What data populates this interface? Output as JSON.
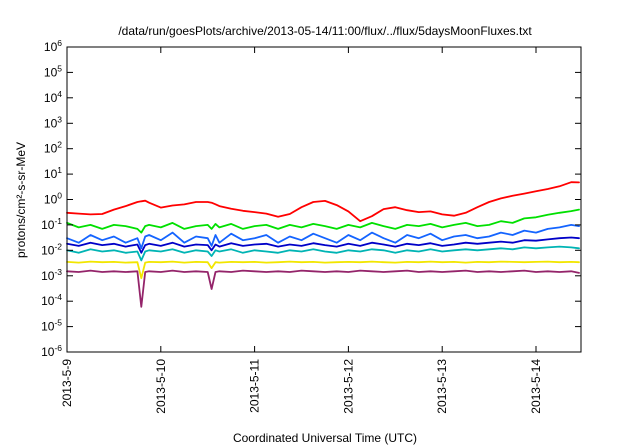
{
  "page": {
    "background": "#ffffff"
  },
  "chart_data": {
    "type": "line",
    "title": "/data/run/goesPlots/archive/2013-05-14/11:00/flux/../flux/5daysMoonFluxes.txt",
    "xlabel": "Coordinated Universal Time (UTC)",
    "ylabel": "protons/cm²-s-sr-MeV",
    "xscale": "time",
    "yscale": "log",
    "xlim": [
      "2013-05-09 00:00",
      "2013-05-14 11:30"
    ],
    "ylim": [
      1e-06,
      1000000.0
    ],
    "grid": false,
    "xticks": [
      {
        "value": "2013-05-09 00:00",
        "label": "2013-5-9"
      },
      {
        "value": "2013-05-10 00:00",
        "label": "2013-5-10"
      },
      {
        "value": "2013-05-11 00:00",
        "label": "2013-5-11"
      },
      {
        "value": "2013-05-12 00:00",
        "label": "2013-5-12"
      },
      {
        "value": "2013-05-13 00:00",
        "label": "2013-5-13"
      },
      {
        "value": "2013-05-14 00:00",
        "label": "2013-5-14"
      }
    ],
    "yticks": [
      {
        "value": 1000000.0,
        "base": "10",
        "exp": "6"
      },
      {
        "value": 100000.0,
        "base": "10",
        "exp": "5"
      },
      {
        "value": 10000.0,
        "base": "10",
        "exp": "4"
      },
      {
        "value": 1000.0,
        "base": "10",
        "exp": "3"
      },
      {
        "value": 100.0,
        "base": "10",
        "exp": "2"
      },
      {
        "value": 10.0,
        "base": "10",
        "exp": "1"
      },
      {
        "value": 1,
        "base": "10",
        "exp": "0"
      },
      {
        "value": 0.1,
        "base": "10",
        "exp": "-1"
      },
      {
        "value": 0.01,
        "base": "10",
        "exp": "-2"
      },
      {
        "value": 0.001,
        "base": "10",
        "exp": "-3"
      },
      {
        "value": 0.0001,
        "base": "10",
        "exp": "-4"
      },
      {
        "value": 1e-05,
        "base": "10",
        "exp": "-5"
      },
      {
        "value": 1e-06,
        "base": "10",
        "exp": "-6"
      }
    ],
    "x": [
      "2013-05-09 00:00",
      "2013-05-09 03:00",
      "2013-05-09 06:00",
      "2013-05-09 09:00",
      "2013-05-09 12:00",
      "2013-05-09 15:00",
      "2013-05-09 18:00",
      "2013-05-09 19:00",
      "2013-05-09 20:00",
      "2013-05-09 21:00",
      "2013-05-10 00:00",
      "2013-05-10 03:00",
      "2013-05-10 06:00",
      "2013-05-10 09:00",
      "2013-05-10 12:00",
      "2013-05-10 13:00",
      "2013-05-10 14:00",
      "2013-05-10 15:00",
      "2013-05-10 18:00",
      "2013-05-10 21:00",
      "2013-05-11 00:00",
      "2013-05-11 03:00",
      "2013-05-11 06:00",
      "2013-05-11 09:00",
      "2013-05-11 12:00",
      "2013-05-11 15:00",
      "2013-05-11 18:00",
      "2013-05-11 21:00",
      "2013-05-12 00:00",
      "2013-05-12 03:00",
      "2013-05-12 06:00",
      "2013-05-12 09:00",
      "2013-05-12 12:00",
      "2013-05-12 15:00",
      "2013-05-12 18:00",
      "2013-05-12 21:00",
      "2013-05-13 00:00",
      "2013-05-13 03:00",
      "2013-05-13 06:00",
      "2013-05-13 09:00",
      "2013-05-13 12:00",
      "2013-05-13 15:00",
      "2013-05-13 18:00",
      "2013-05-13 21:00",
      "2013-05-14 00:00",
      "2013-05-14 03:00",
      "2013-05-14 06:00",
      "2013-05-14 09:00",
      "2013-05-14 11:00"
    ],
    "series": [
      {
        "color": "#ff0000",
        "values": [
          0.3,
          0.28,
          0.26,
          0.27,
          0.4,
          0.55,
          0.8,
          0.85,
          0.9,
          0.75,
          0.48,
          0.58,
          0.64,
          0.8,
          0.8,
          0.75,
          0.65,
          0.55,
          0.43,
          0.36,
          0.32,
          0.28,
          0.21,
          0.27,
          0.5,
          0.8,
          0.88,
          0.6,
          0.34,
          0.14,
          0.22,
          0.42,
          0.5,
          0.38,
          0.32,
          0.34,
          0.26,
          0.23,
          0.3,
          0.5,
          0.8,
          1.1,
          1.4,
          1.7,
          2.1,
          2.6,
          3.3,
          4.8,
          4.7
        ]
      },
      {
        "color": "#00e000",
        "values": [
          0.12,
          0.08,
          0.1,
          0.07,
          0.1,
          0.09,
          0.07,
          0.05,
          0.09,
          0.1,
          0.08,
          0.12,
          0.07,
          0.09,
          0.1,
          0.07,
          0.11,
          0.08,
          0.11,
          0.07,
          0.09,
          0.1,
          0.07,
          0.1,
          0.08,
          0.11,
          0.09,
          0.07,
          0.1,
          0.08,
          0.12,
          0.09,
          0.07,
          0.1,
          0.09,
          0.11,
          0.08,
          0.1,
          0.12,
          0.09,
          0.1,
          0.14,
          0.12,
          0.18,
          0.2,
          0.25,
          0.3,
          0.35,
          0.4
        ]
      },
      {
        "color": "#1464ff",
        "values": [
          0.03,
          0.02,
          0.04,
          0.025,
          0.035,
          0.02,
          0.03,
          0.012,
          0.035,
          0.04,
          0.025,
          0.05,
          0.02,
          0.035,
          0.03,
          0.015,
          0.04,
          0.02,
          0.045,
          0.025,
          0.03,
          0.04,
          0.02,
          0.035,
          0.025,
          0.045,
          0.03,
          0.02,
          0.04,
          0.025,
          0.05,
          0.03,
          0.02,
          0.04,
          0.03,
          0.045,
          0.025,
          0.035,
          0.04,
          0.03,
          0.035,
          0.05,
          0.04,
          0.06,
          0.05,
          0.07,
          0.08,
          0.1,
          0.09
        ]
      },
      {
        "color": "#0000c8",
        "values": [
          0.018,
          0.015,
          0.02,
          0.016,
          0.018,
          0.014,
          0.017,
          0.008,
          0.016,
          0.018,
          0.015,
          0.02,
          0.014,
          0.017,
          0.016,
          0.01,
          0.017,
          0.014,
          0.019,
          0.015,
          0.017,
          0.018,
          0.014,
          0.017,
          0.015,
          0.019,
          0.016,
          0.014,
          0.018,
          0.015,
          0.02,
          0.017,
          0.014,
          0.018,
          0.016,
          0.019,
          0.015,
          0.017,
          0.02,
          0.018,
          0.02,
          0.022,
          0.02,
          0.025,
          0.024,
          0.027,
          0.03,
          0.032,
          0.03
        ]
      },
      {
        "color": "#00b4b4",
        "values": [
          0.01,
          0.008,
          0.011,
          0.009,
          0.01,
          0.008,
          0.009,
          0.004,
          0.009,
          0.01,
          0.009,
          0.011,
          0.008,
          0.01,
          0.009,
          0.006,
          0.01,
          0.009,
          0.011,
          0.008,
          0.01,
          0.009,
          0.008,
          0.01,
          0.009,
          0.011,
          0.009,
          0.008,
          0.01,
          0.009,
          0.011,
          0.01,
          0.008,
          0.01,
          0.009,
          0.011,
          0.009,
          0.01,
          0.011,
          0.01,
          0.011,
          0.012,
          0.011,
          0.013,
          0.012,
          0.013,
          0.014,
          0.013,
          0.012
        ]
      },
      {
        "color": "#f2e600",
        "values": [
          0.0035,
          0.0033,
          0.0036,
          0.0034,
          0.0035,
          0.0033,
          0.0034,
          0.0008,
          0.0033,
          0.0035,
          0.0034,
          0.0036,
          0.0033,
          0.0035,
          0.0034,
          0.002,
          0.0034,
          0.0033,
          0.0035,
          0.0034,
          0.0035,
          0.0033,
          0.0034,
          0.0036,
          0.0034,
          0.0035,
          0.0033,
          0.0034,
          0.0035,
          0.0034,
          0.0036,
          0.0034,
          0.0033,
          0.0035,
          0.0034,
          0.0036,
          0.0034,
          0.0035,
          0.0033,
          0.0035,
          0.0034,
          0.0036,
          0.0035,
          0.0034,
          0.0035,
          0.0036,
          0.0034,
          0.0035,
          0.0034
        ]
      },
      {
        "color": "#94246a",
        "values": [
          0.0015,
          0.0014,
          0.0016,
          0.0014,
          0.0015,
          0.0014,
          0.0015,
          6e-05,
          0.0014,
          0.0015,
          0.0014,
          0.0016,
          0.0014,
          0.0015,
          0.0014,
          0.0003,
          0.0014,
          0.0015,
          0.0014,
          0.0016,
          0.0015,
          0.0014,
          0.0015,
          0.0014,
          0.0016,
          0.0015,
          0.0014,
          0.0015,
          0.0014,
          0.0016,
          0.0015,
          0.0014,
          0.0015,
          0.0016,
          0.0014,
          0.0015,
          0.0014,
          0.0015,
          0.0016,
          0.0014,
          0.0015,
          0.0014,
          0.0015,
          0.0016,
          0.0014,
          0.0015,
          0.0014,
          0.0015,
          0.0013
        ]
      }
    ]
  }
}
